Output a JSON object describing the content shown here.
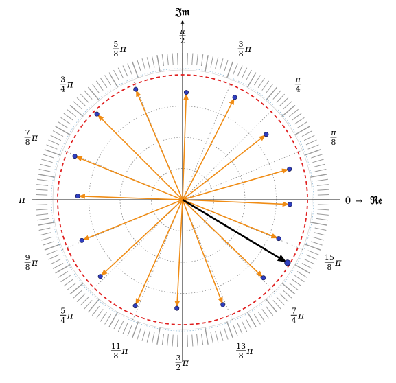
{
  "diagram": {
    "axis_labels": {
      "imaginary": "𝔍𝔪",
      "real": "ℜ𝔢",
      "zero": "0",
      "arrow": "→"
    },
    "angle_labels": [
      {
        "num": "",
        "den": "",
        "sym": "π",
        "frac": false,
        "angle_over_pi": 1.0
      },
      {
        "num": "π",
        "den": "2",
        "sym": "",
        "frac": true,
        "angle_over_pi": 0.5
      },
      {
        "num": "3",
        "den": "8",
        "sym": "π",
        "frac": true,
        "angle_over_pi": 0.375
      },
      {
        "num": "π",
        "den": "4",
        "sym": "",
        "frac": true,
        "angle_over_pi": 0.25
      },
      {
        "num": "π",
        "den": "8",
        "sym": "",
        "frac": true,
        "angle_over_pi": 0.125
      },
      {
        "num": "5",
        "den": "8",
        "sym": "π",
        "frac": true,
        "angle_over_pi": 0.625
      },
      {
        "num": "3",
        "den": "4",
        "sym": "π",
        "frac": true,
        "angle_over_pi": 0.75
      },
      {
        "num": "7",
        "den": "8",
        "sym": "π",
        "frac": true,
        "angle_over_pi": 0.875
      },
      {
        "num": "9",
        "den": "8",
        "sym": "π",
        "frac": true,
        "angle_over_pi": 1.125
      },
      {
        "num": "5",
        "den": "4",
        "sym": "π",
        "frac": true,
        "angle_over_pi": 1.25
      },
      {
        "num": "11",
        "den": "8",
        "sym": "π",
        "frac": true,
        "angle_over_pi": 1.375
      },
      {
        "num": "3",
        "den": "2",
        "sym": "π",
        "frac": true,
        "angle_over_pi": 1.5
      },
      {
        "num": "13",
        "den": "8",
        "sym": "π",
        "frac": true,
        "angle_over_pi": 1.625
      },
      {
        "num": "7",
        "den": "4",
        "sym": "π",
        "frac": true,
        "angle_over_pi": 1.75
      },
      {
        "num": "15",
        "den": "8",
        "sym": "π",
        "frac": true,
        "angle_over_pi": 1.875
      }
    ],
    "unit_circle_radius": 1.0,
    "vectors": [
      {
        "angle_deg": -2.5,
        "magnitude": 0.86
      },
      {
        "angle_deg": 16.0,
        "magnitude": 0.89
      },
      {
        "angle_deg": 38.0,
        "magnitude": 0.85
      },
      {
        "angle_deg": 63.0,
        "magnitude": 0.92
      },
      {
        "angle_deg": 88.0,
        "magnitude": 0.86
      },
      {
        "angle_deg": 113.0,
        "magnitude": 0.96
      },
      {
        "angle_deg": 135.0,
        "magnitude": 0.97
      },
      {
        "angle_deg": 158.0,
        "magnitude": 0.93
      },
      {
        "angle_deg": 178.0,
        "magnitude": 0.84
      },
      {
        "angle_deg": 202.0,
        "magnitude": 0.87
      },
      {
        "angle_deg": 223.0,
        "magnitude": 0.9
      },
      {
        "angle_deg": 246.0,
        "magnitude": 0.93
      },
      {
        "angle_deg": 267.0,
        "magnitude": 0.87
      },
      {
        "angle_deg": 291.0,
        "magnitude": 0.9
      },
      {
        "angle_deg": 316.0,
        "magnitude": 0.9
      },
      {
        "angle_deg": 338.0,
        "magnitude": 0.83
      }
    ],
    "highlight_vector": {
      "angle_deg": -31.0,
      "magnitude": 0.98
    },
    "colors": {
      "vector": "#f08c14",
      "highlight": "#000000",
      "point": "#2f3fbf",
      "unit_circle": "#e02020",
      "axis": "#666666",
      "grid": "#888888",
      "ticks": "#9a9a9a"
    }
  }
}
